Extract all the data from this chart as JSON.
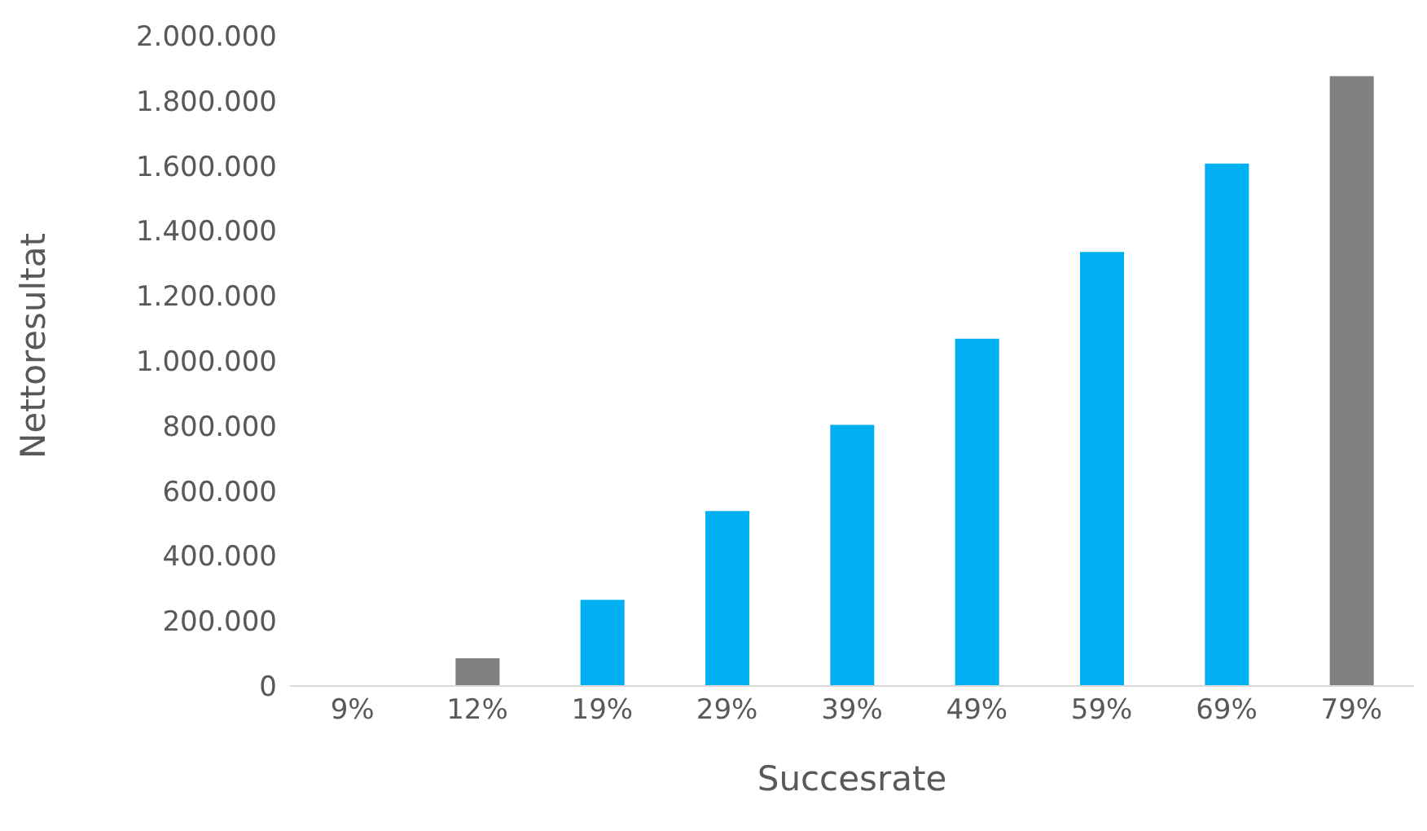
{
  "chart_data": {
    "type": "bar",
    "xlabel": "Succesrate",
    "ylabel": "Nettoresultat",
    "categories": [
      "9%",
      "12%",
      "19%",
      "29%",
      "39%",
      "49%",
      "59%",
      "69%",
      "79%"
    ],
    "values": [
      0,
      85000,
      265000,
      538000,
      803000,
      1068000,
      1335000,
      1607000,
      1876000
    ],
    "colors": [
      "#808080",
      "#808080",
      "#00b0f0",
      "#00b0f0",
      "#00b0f0",
      "#00b0f0",
      "#00b0f0",
      "#00b0f0",
      "#808080"
    ],
    "ylim": [
      0,
      2000000
    ],
    "yticks": [
      {
        "value": 0,
        "label": "0"
      },
      {
        "value": 200000,
        "label": "200.000"
      },
      {
        "value": 400000,
        "label": "400.000"
      },
      {
        "value": 600000,
        "label": "600.000"
      },
      {
        "value": 800000,
        "label": "800.000"
      },
      {
        "value": 1000000,
        "label": "1.000.000"
      },
      {
        "value": 1200000,
        "label": "1.200.000"
      },
      {
        "value": 1400000,
        "label": "1.400.000"
      },
      {
        "value": 1600000,
        "label": "1.600.000"
      },
      {
        "value": 1800000,
        "label": "1.800.000"
      },
      {
        "value": 2000000,
        "label": "2.000.000"
      }
    ],
    "grid": false,
    "legend": false
  }
}
